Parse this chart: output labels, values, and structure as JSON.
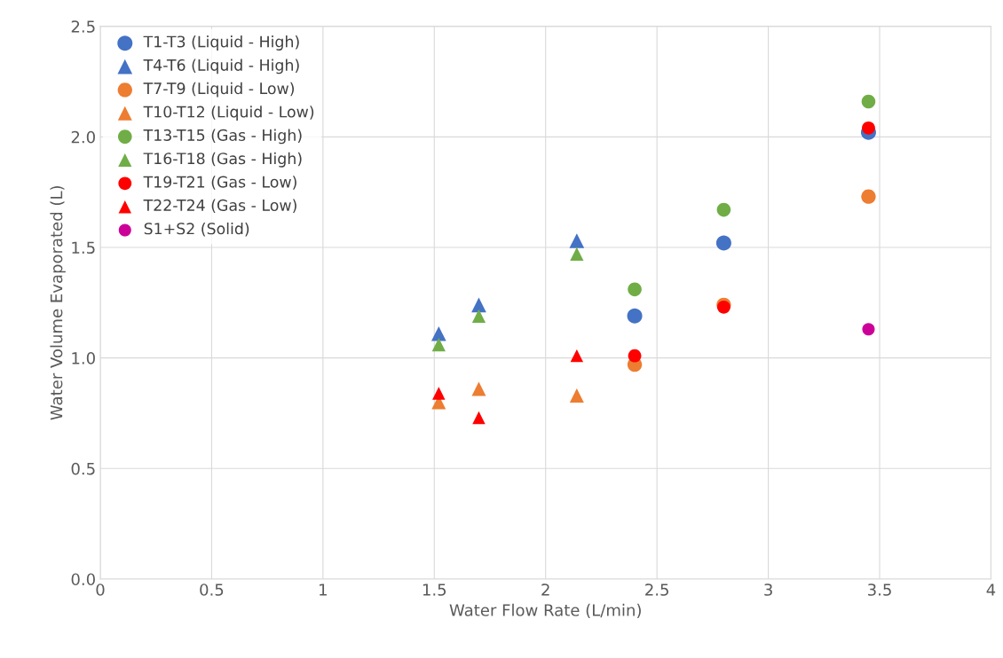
{
  "chart_data": {
    "type": "scatter",
    "xlabel": "Water Flow Rate (L/min)",
    "ylabel": "Water Volume Evaporated (L)",
    "xlim": [
      0,
      4
    ],
    "xticks": [
      0,
      0.5,
      1,
      1.5,
      2,
      2.5,
      3,
      3.5,
      4
    ],
    "ylim": [
      0,
      2.5
    ],
    "yticks": [
      {
        "value": 0,
        "label": "0.0"
      },
      {
        "value": 0.5,
        "label": "0.5"
      },
      {
        "value": 1,
        "label": "1.0"
      },
      {
        "value": 1.5,
        "label": "1.5"
      },
      {
        "value": 2,
        "label": "2.0"
      },
      {
        "value": 2.5,
        "label": "2.5"
      }
    ],
    "grid": true,
    "legend": "top left",
    "series": [
      {
        "name": "T1-T3 (Liquid - High)",
        "color": "#4472c4",
        "marker": "circle",
        "x": [
          2.4,
          2.8,
          3.45
        ],
        "values": [
          1.19,
          1.52,
          2.02
        ]
      },
      {
        "name": "T4-T6 (Liquid - High)",
        "color": "#4472c4",
        "marker": "triangle",
        "x": [
          1.52,
          1.7,
          2.14
        ],
        "values": [
          1.11,
          1.24,
          1.53
        ]
      },
      {
        "name": "T7-T9 (Liquid - Low)",
        "color": "#ed7d31",
        "marker": "circle",
        "x": [
          2.4,
          2.8,
          3.45
        ],
        "values": [
          0.97,
          1.24,
          1.73
        ]
      },
      {
        "name": "T10-T12 (Liquid - Low)",
        "color": "#ed7d31",
        "marker": "triangle",
        "x": [
          1.52,
          1.7,
          2.14
        ],
        "values": [
          0.8,
          0.86,
          0.83
        ]
      },
      {
        "name": "T13-T15 (Gas - High)",
        "color": "#70ad47",
        "marker": "circle",
        "x": [
          2.4,
          2.8,
          3.45
        ],
        "values": [
          1.31,
          1.67,
          2.16
        ]
      },
      {
        "name": "T16-T18 (Gas - High)",
        "color": "#70ad47",
        "marker": "triangle",
        "x": [
          1.52,
          1.7,
          2.14
        ],
        "values": [
          1.06,
          1.19,
          1.47
        ]
      },
      {
        "name": "T19-T21 (Gas - Low)",
        "color": "#ff0000",
        "marker": "circle",
        "x": [
          2.4,
          2.8,
          3.45
        ],
        "values": [
          1.01,
          1.23,
          2.04
        ]
      },
      {
        "name": "T22-T24 (Gas - Low)",
        "color": "#ff0000",
        "marker": "triangle",
        "x": [
          1.52,
          1.7,
          2.14
        ],
        "values": [
          0.84,
          0.73,
          1.01
        ]
      },
      {
        "name": "S1+S2 (Solid)",
        "color": "#cc0099",
        "marker": "circle",
        "x": [
          3.45
        ],
        "values": [
          1.13
        ]
      }
    ]
  }
}
